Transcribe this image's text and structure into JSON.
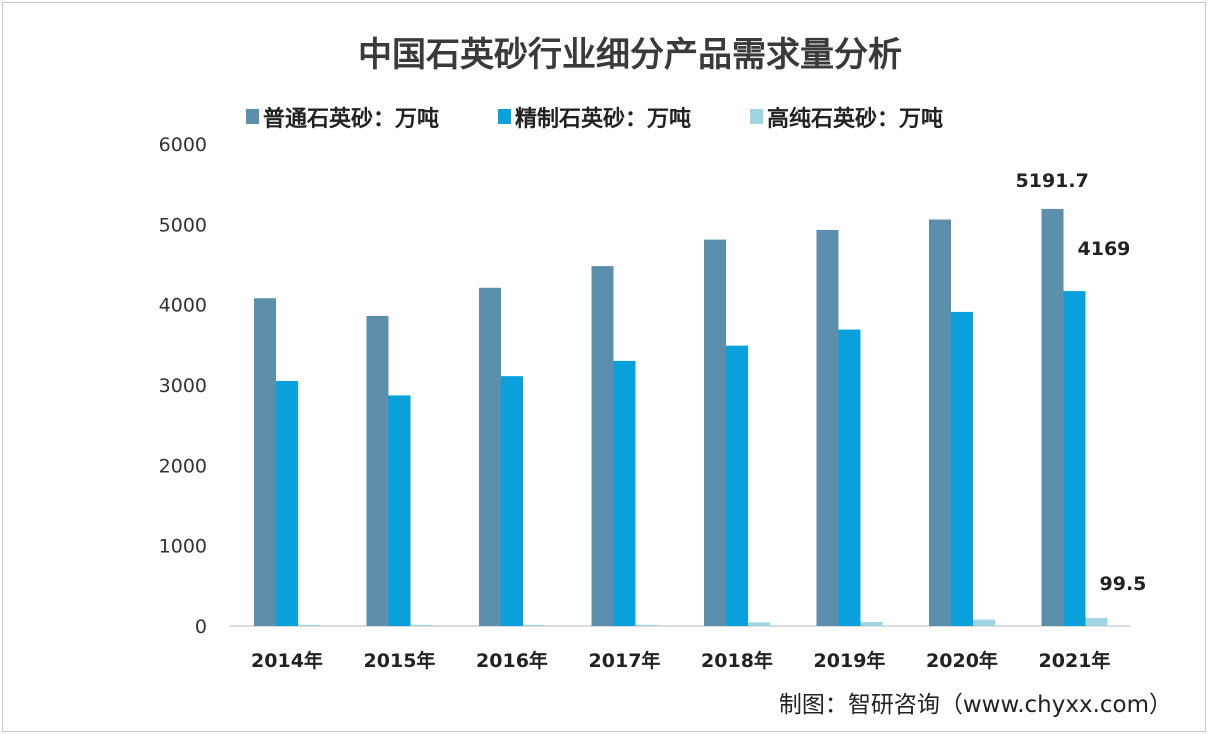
{
  "chart_data": {
    "type": "bar",
    "title": "中国石英砂行业细分产品需求量分析",
    "categories": [
      "2014年",
      "2015年",
      "2016年",
      "2017年",
      "2018年",
      "2019年",
      "2020年",
      "2021年"
    ],
    "series": [
      {
        "name": "普通石英砂：万吨",
        "color": "#5b8fab",
        "values": [
          4080,
          3860,
          4210,
          4480,
          4810,
          4930,
          5060,
          5191.7
        ],
        "labels": {
          "7": "5191.7"
        }
      },
      {
        "name": "精制石英砂：万吨",
        "color": "#0aa0dc",
        "values": [
          3050,
          2870,
          3110,
          3300,
          3490,
          3690,
          3910,
          4169
        ],
        "labels": {
          "7": "4169"
        }
      },
      {
        "name": "高纯石英砂：万吨",
        "color": "#9fd5e2",
        "values": [
          15,
          15,
          15,
          15,
          45,
          50,
          80,
          99.5
        ],
        "labels": {
          "7": "99.5"
        }
      }
    ],
    "ylim": [
      0,
      6000
    ],
    "yticks": [
      "0",
      "1000",
      "2000",
      "3000",
      "4000",
      "5000",
      "6000"
    ],
    "xlabel": "",
    "ylabel": "",
    "grid": false,
    "legend": "top"
  },
  "source": "制图：智研咨询（www.chyxx.com）"
}
